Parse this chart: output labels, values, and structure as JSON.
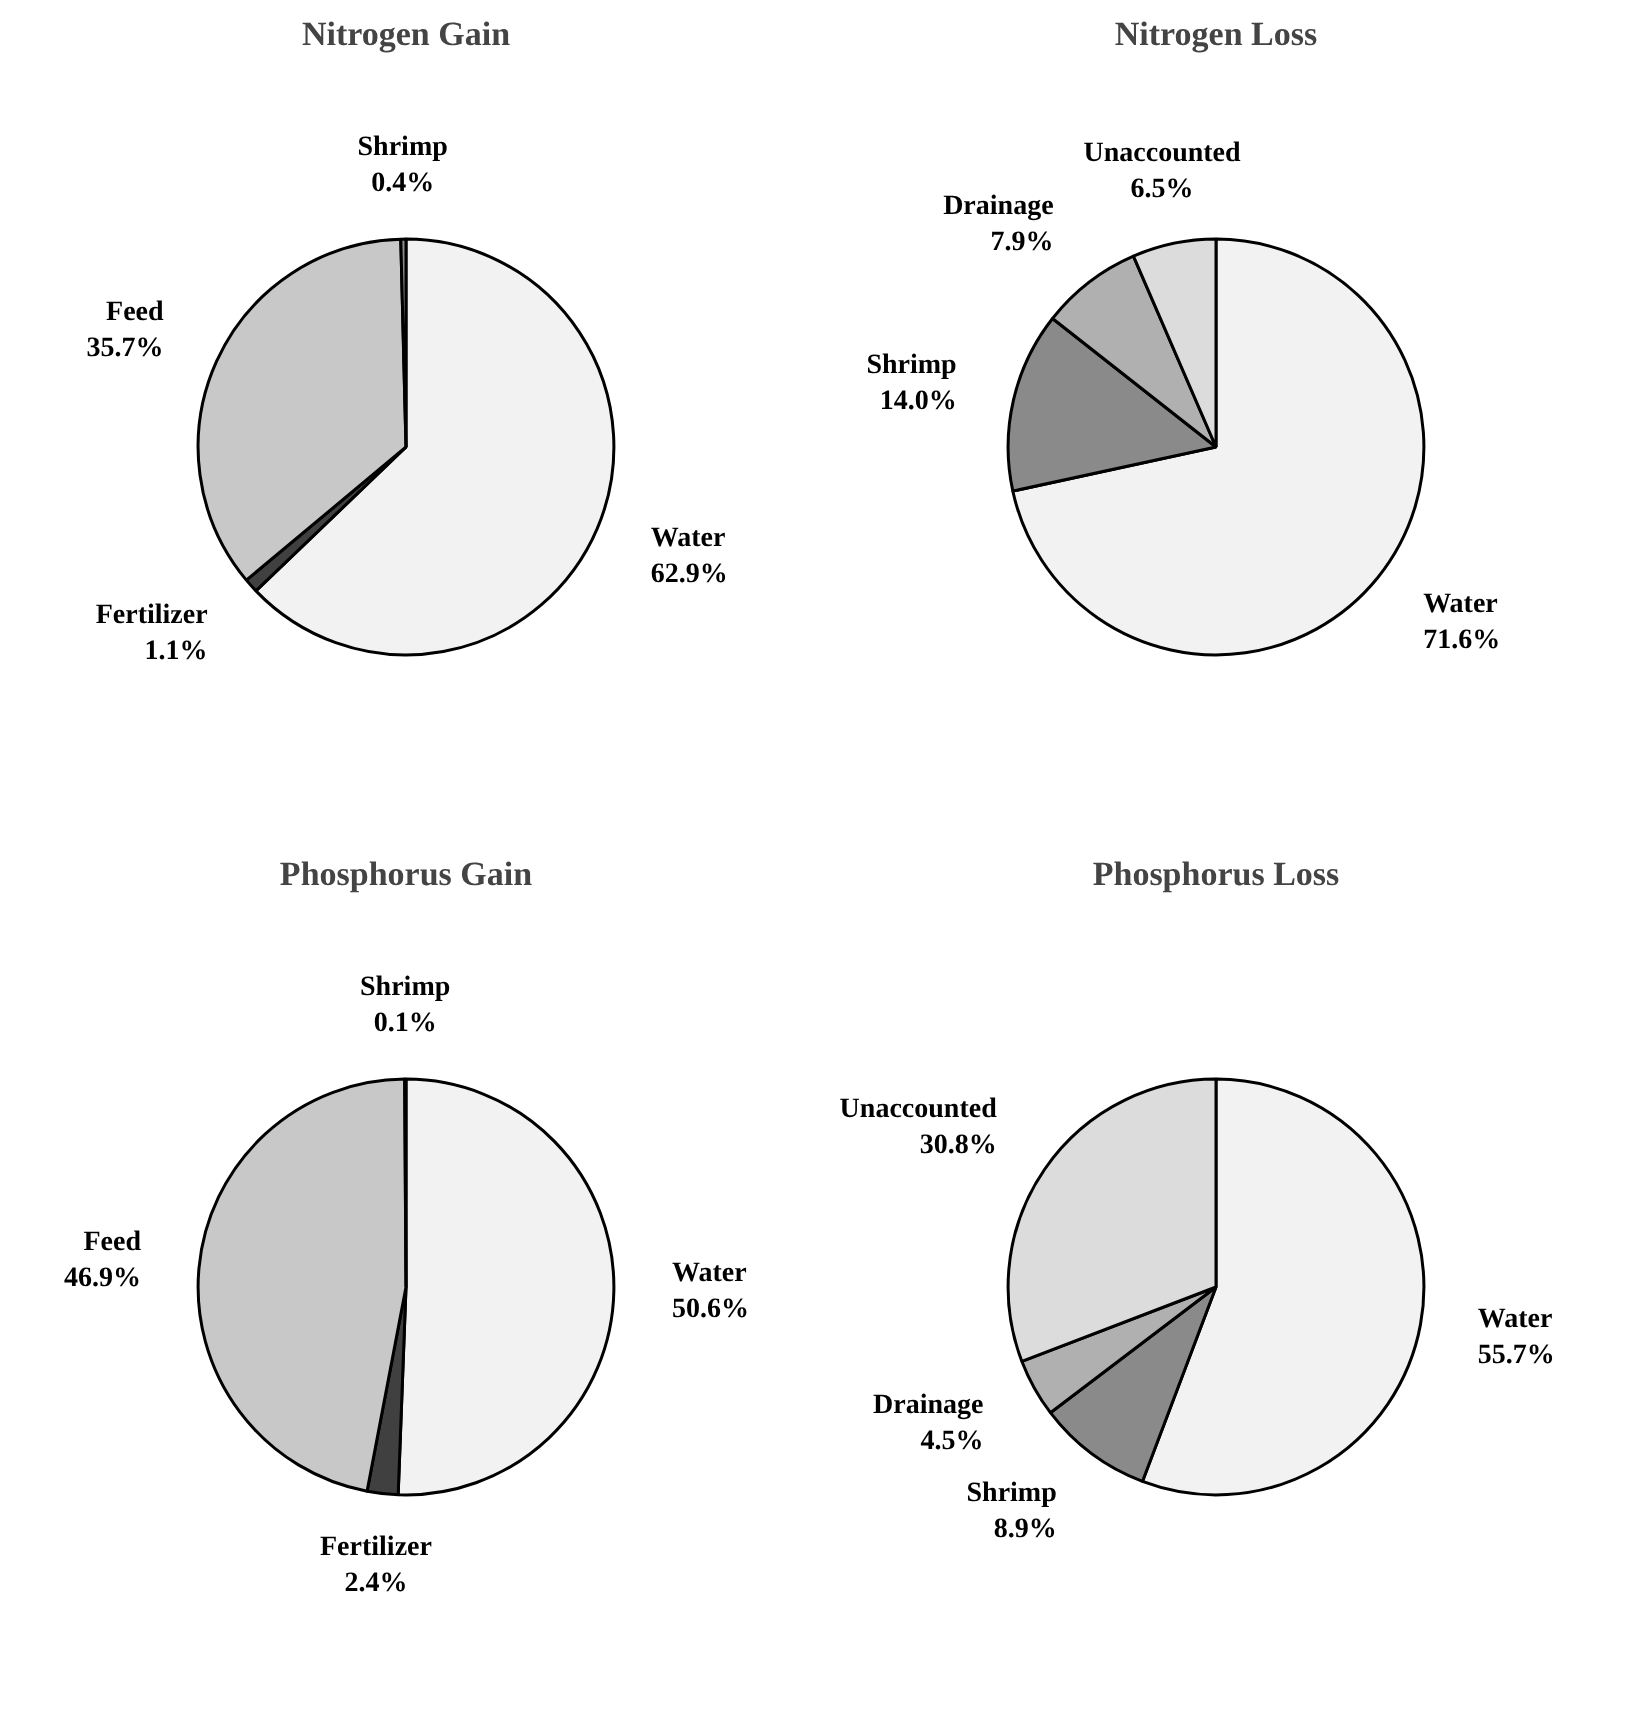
{
  "chart_data": [
    {
      "type": "pie",
      "title": "Nitrogen Gain",
      "categories": [
        "Water",
        "Fertilizer",
        "Feed",
        "Shrimp"
      ],
      "values": [
        62.9,
        1.1,
        35.7,
        0.4
      ],
      "colors": [
        "#f2f2f2",
        "#404040",
        "#c8c8c8",
        "#8a8a8a"
      ],
      "value_labels": [
        "62.9%",
        "1.1%",
        "35.7%",
        "0.4%"
      ]
    },
    {
      "type": "pie",
      "title": "Nitrogen Loss",
      "categories": [
        "Water",
        "Shrimp",
        "Drainage",
        "Unaccounted"
      ],
      "values": [
        71.6,
        14.0,
        7.9,
        6.5
      ],
      "colors": [
        "#f2f2f2",
        "#8a8a8a",
        "#b0b0b0",
        "#dcdcdc"
      ],
      "value_labels": [
        "71.6%",
        "14.0%",
        "7.9%",
        "6.5%"
      ]
    },
    {
      "type": "pie",
      "title": "Phosphorus Gain",
      "categories": [
        "Water",
        "Fertilizer",
        "Feed",
        "Shrimp"
      ],
      "values": [
        50.6,
        2.4,
        46.9,
        0.1
      ],
      "colors": [
        "#f2f2f2",
        "#404040",
        "#c8c8c8",
        "#8a8a8a"
      ],
      "value_labels": [
        "50.6%",
        "2.4%",
        "46.9%",
        "0.1%"
      ]
    },
    {
      "type": "pie",
      "title": "Phosphorus Loss",
      "categories": [
        "Water",
        "Shrimp",
        "Drainage",
        "Unaccounted"
      ],
      "values": [
        55.7,
        8.9,
        4.5,
        30.8
      ],
      "colors": [
        "#f2f2f2",
        "#8a8a8a",
        "#b0b0b0",
        "#dcdcdc"
      ],
      "value_labels": [
        "55.7%",
        "8.9%",
        "4.5%",
        "30.8%"
      ]
    }
  ]
}
